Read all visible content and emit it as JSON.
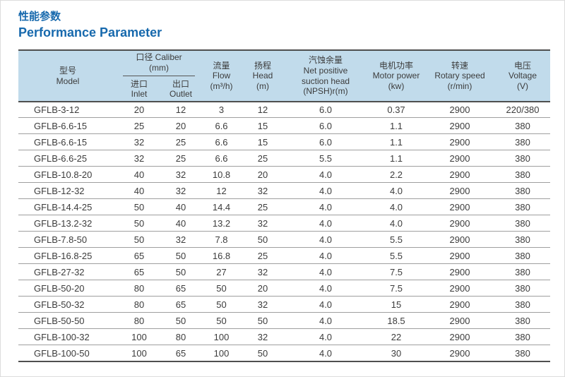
{
  "colors": {
    "title_blue": "#1769ad",
    "header_bg": "#c1dbeb"
  },
  "title": {
    "zh": "性能参数",
    "en": "Performance Parameter"
  },
  "table": {
    "columns": [
      "model",
      "inlet",
      "outlet",
      "flow",
      "head",
      "npsh",
      "motor_power",
      "rotary_speed",
      "voltage"
    ],
    "header": {
      "model": {
        "zh": "型号",
        "en": "Model"
      },
      "caliber": {
        "line1": "口径 Caliber",
        "line2": "(mm)"
      },
      "inlet": {
        "zh": "进口",
        "en": "Inlet"
      },
      "outlet": {
        "zh": "出口",
        "en": "Outlet"
      },
      "flow": {
        "zh": "流量",
        "en": "Flow",
        "unit": "(m³/h)"
      },
      "head": {
        "zh": "扬程",
        "en": "Head",
        "unit": "(m)"
      },
      "npsh": {
        "zh": "汽蚀余量",
        "en1": "Net positive",
        "en2": "suction head",
        "unit": "(NPSH)r(m)"
      },
      "motor_power": {
        "zh": "电机功率",
        "en": "Motor power",
        "unit": "(kw)"
      },
      "rotary_speed": {
        "zh": "转速",
        "en": "Rotary speed",
        "unit": "(r/min)"
      },
      "voltage": {
        "zh": "电压",
        "en": "Voltage",
        "unit": "(V)"
      }
    },
    "rows": [
      {
        "model": "GFLB-3-12",
        "inlet": "20",
        "outlet": "12",
        "flow": "3",
        "head": "12",
        "npsh": "6.0",
        "motor_power": "0.37",
        "rotary_speed": "2900",
        "voltage": "220/380"
      },
      {
        "model": "GFLB-6.6-15",
        "inlet": "25",
        "outlet": "20",
        "flow": "6.6",
        "head": "15",
        "npsh": "6.0",
        "motor_power": "1.1",
        "rotary_speed": "2900",
        "voltage": "380"
      },
      {
        "model": "GFLB-6.6-15",
        "inlet": "32",
        "outlet": "25",
        "flow": "6.6",
        "head": "15",
        "npsh": "6.0",
        "motor_power": "1.1",
        "rotary_speed": "2900",
        "voltage": "380"
      },
      {
        "model": "GFLB-6.6-25",
        "inlet": "32",
        "outlet": "25",
        "flow": "6.6",
        "head": "25",
        "npsh": "5.5",
        "motor_power": "1.1",
        "rotary_speed": "2900",
        "voltage": "380"
      },
      {
        "model": "GFLB-10.8-20",
        "inlet": "40",
        "outlet": "32",
        "flow": "10.8",
        "head": "20",
        "npsh": "4.0",
        "motor_power": "2.2",
        "rotary_speed": "2900",
        "voltage": "380"
      },
      {
        "model": "GFLB-12-32",
        "inlet": "40",
        "outlet": "32",
        "flow": "12",
        "head": "32",
        "npsh": "4.0",
        "motor_power": "4.0",
        "rotary_speed": "2900",
        "voltage": "380"
      },
      {
        "model": "GFLB-14.4-25",
        "inlet": "50",
        "outlet": "40",
        "flow": "14.4",
        "head": "25",
        "npsh": "4.0",
        "motor_power": "4.0",
        "rotary_speed": "2900",
        "voltage": "380"
      },
      {
        "model": "GFLB-13.2-32",
        "inlet": "50",
        "outlet": "40",
        "flow": "13.2",
        "head": "32",
        "npsh": "4.0",
        "motor_power": "4.0",
        "rotary_speed": "2900",
        "voltage": "380"
      },
      {
        "model": "GFLB-7.8-50",
        "inlet": "50",
        "outlet": "32",
        "flow": "7.8",
        "head": "50",
        "npsh": "4.0",
        "motor_power": "5.5",
        "rotary_speed": "2900",
        "voltage": "380"
      },
      {
        "model": "GFLB-16.8-25",
        "inlet": "65",
        "outlet": "50",
        "flow": "16.8",
        "head": "25",
        "npsh": "4.0",
        "motor_power": "5.5",
        "rotary_speed": "2900",
        "voltage": "380"
      },
      {
        "model": "GFLB-27-32",
        "inlet": "65",
        "outlet": "50",
        "flow": "27",
        "head": "32",
        "npsh": "4.0",
        "motor_power": "7.5",
        "rotary_speed": "2900",
        "voltage": "380"
      },
      {
        "model": "GFLB-50-20",
        "inlet": "80",
        "outlet": "65",
        "flow": "50",
        "head": "20",
        "npsh": "4.0",
        "motor_power": "7.5",
        "rotary_speed": "2900",
        "voltage": "380"
      },
      {
        "model": "GFLB-50-32",
        "inlet": "80",
        "outlet": "65",
        "flow": "50",
        "head": "32",
        "npsh": "4.0",
        "motor_power": "15",
        "rotary_speed": "2900",
        "voltage": "380"
      },
      {
        "model": "GFLB-50-50",
        "inlet": "80",
        "outlet": "50",
        "flow": "50",
        "head": "50",
        "npsh": "4.0",
        "motor_power": "18.5",
        "rotary_speed": "2900",
        "voltage": "380"
      },
      {
        "model": "GFLB-100-32",
        "inlet": "100",
        "outlet": "80",
        "flow": "100",
        "head": "32",
        "npsh": "4.0",
        "motor_power": "22",
        "rotary_speed": "2900",
        "voltage": "380"
      },
      {
        "model": "GFLB-100-50",
        "inlet": "100",
        "outlet": "65",
        "flow": "100",
        "head": "50",
        "npsh": "4.0",
        "motor_power": "30",
        "rotary_speed": "2900",
        "voltage": "380"
      }
    ]
  }
}
